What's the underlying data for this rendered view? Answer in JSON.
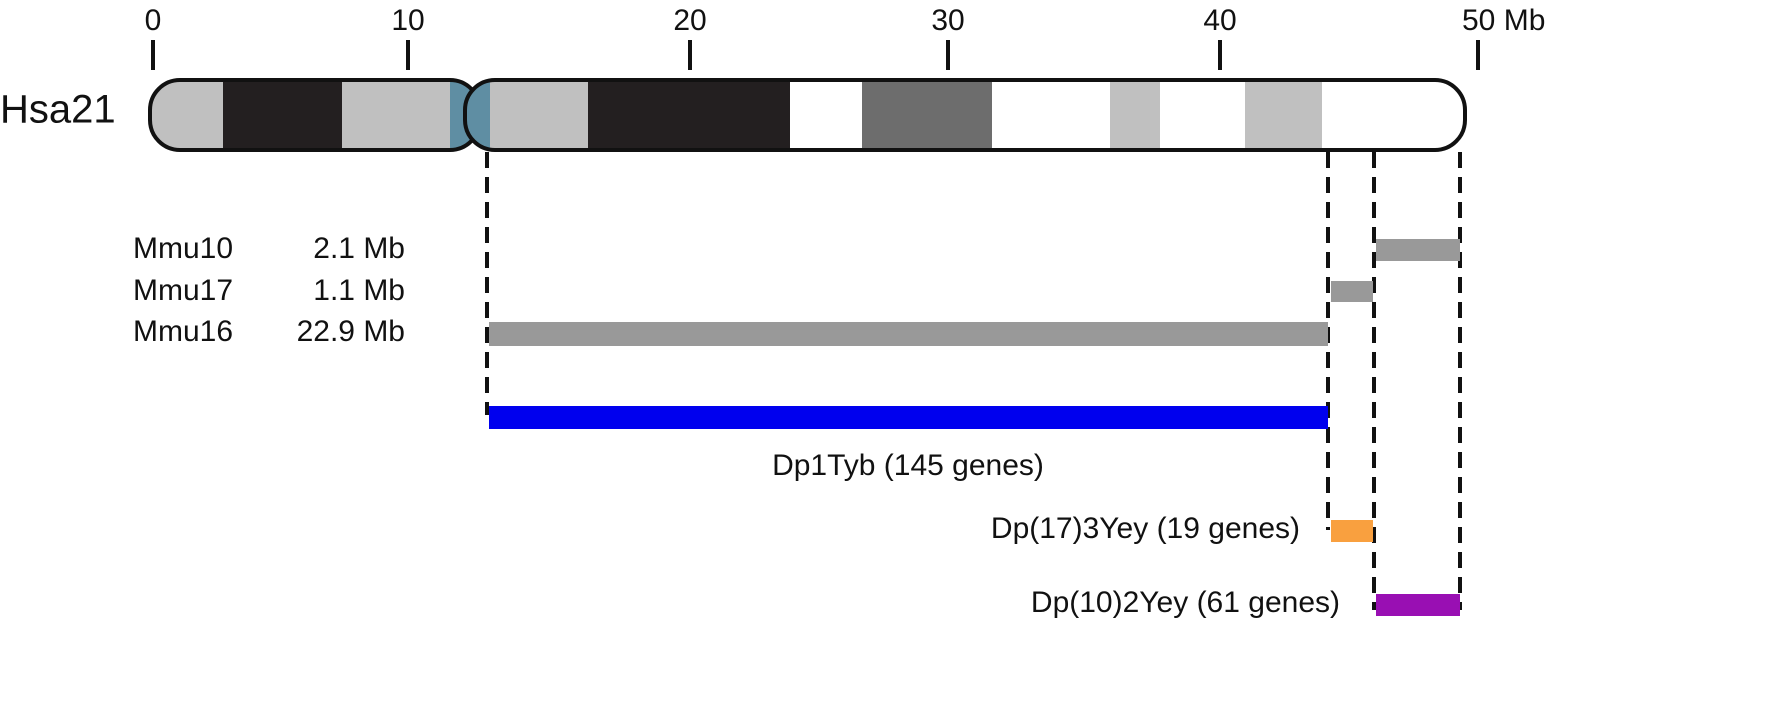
{
  "scale": {
    "ticks": [
      "0",
      "10",
      "20",
      "30",
      "40",
      "50 Mb"
    ]
  },
  "chromosome": {
    "label": "Hsa21"
  },
  "regions": [
    {
      "name": "Mmu10",
      "size": "2.1 Mb"
    },
    {
      "name": "Mmu17",
      "size": "1.1 Mb"
    },
    {
      "name": "Mmu16",
      "size": "22.9 Mb"
    }
  ],
  "duplications": [
    {
      "label": "Dp1Tyb (145 genes)"
    },
    {
      "label": "Dp(17)3Yey (19 genes)"
    },
    {
      "label": "Dp(10)2Yey (61 genes)"
    }
  ]
}
